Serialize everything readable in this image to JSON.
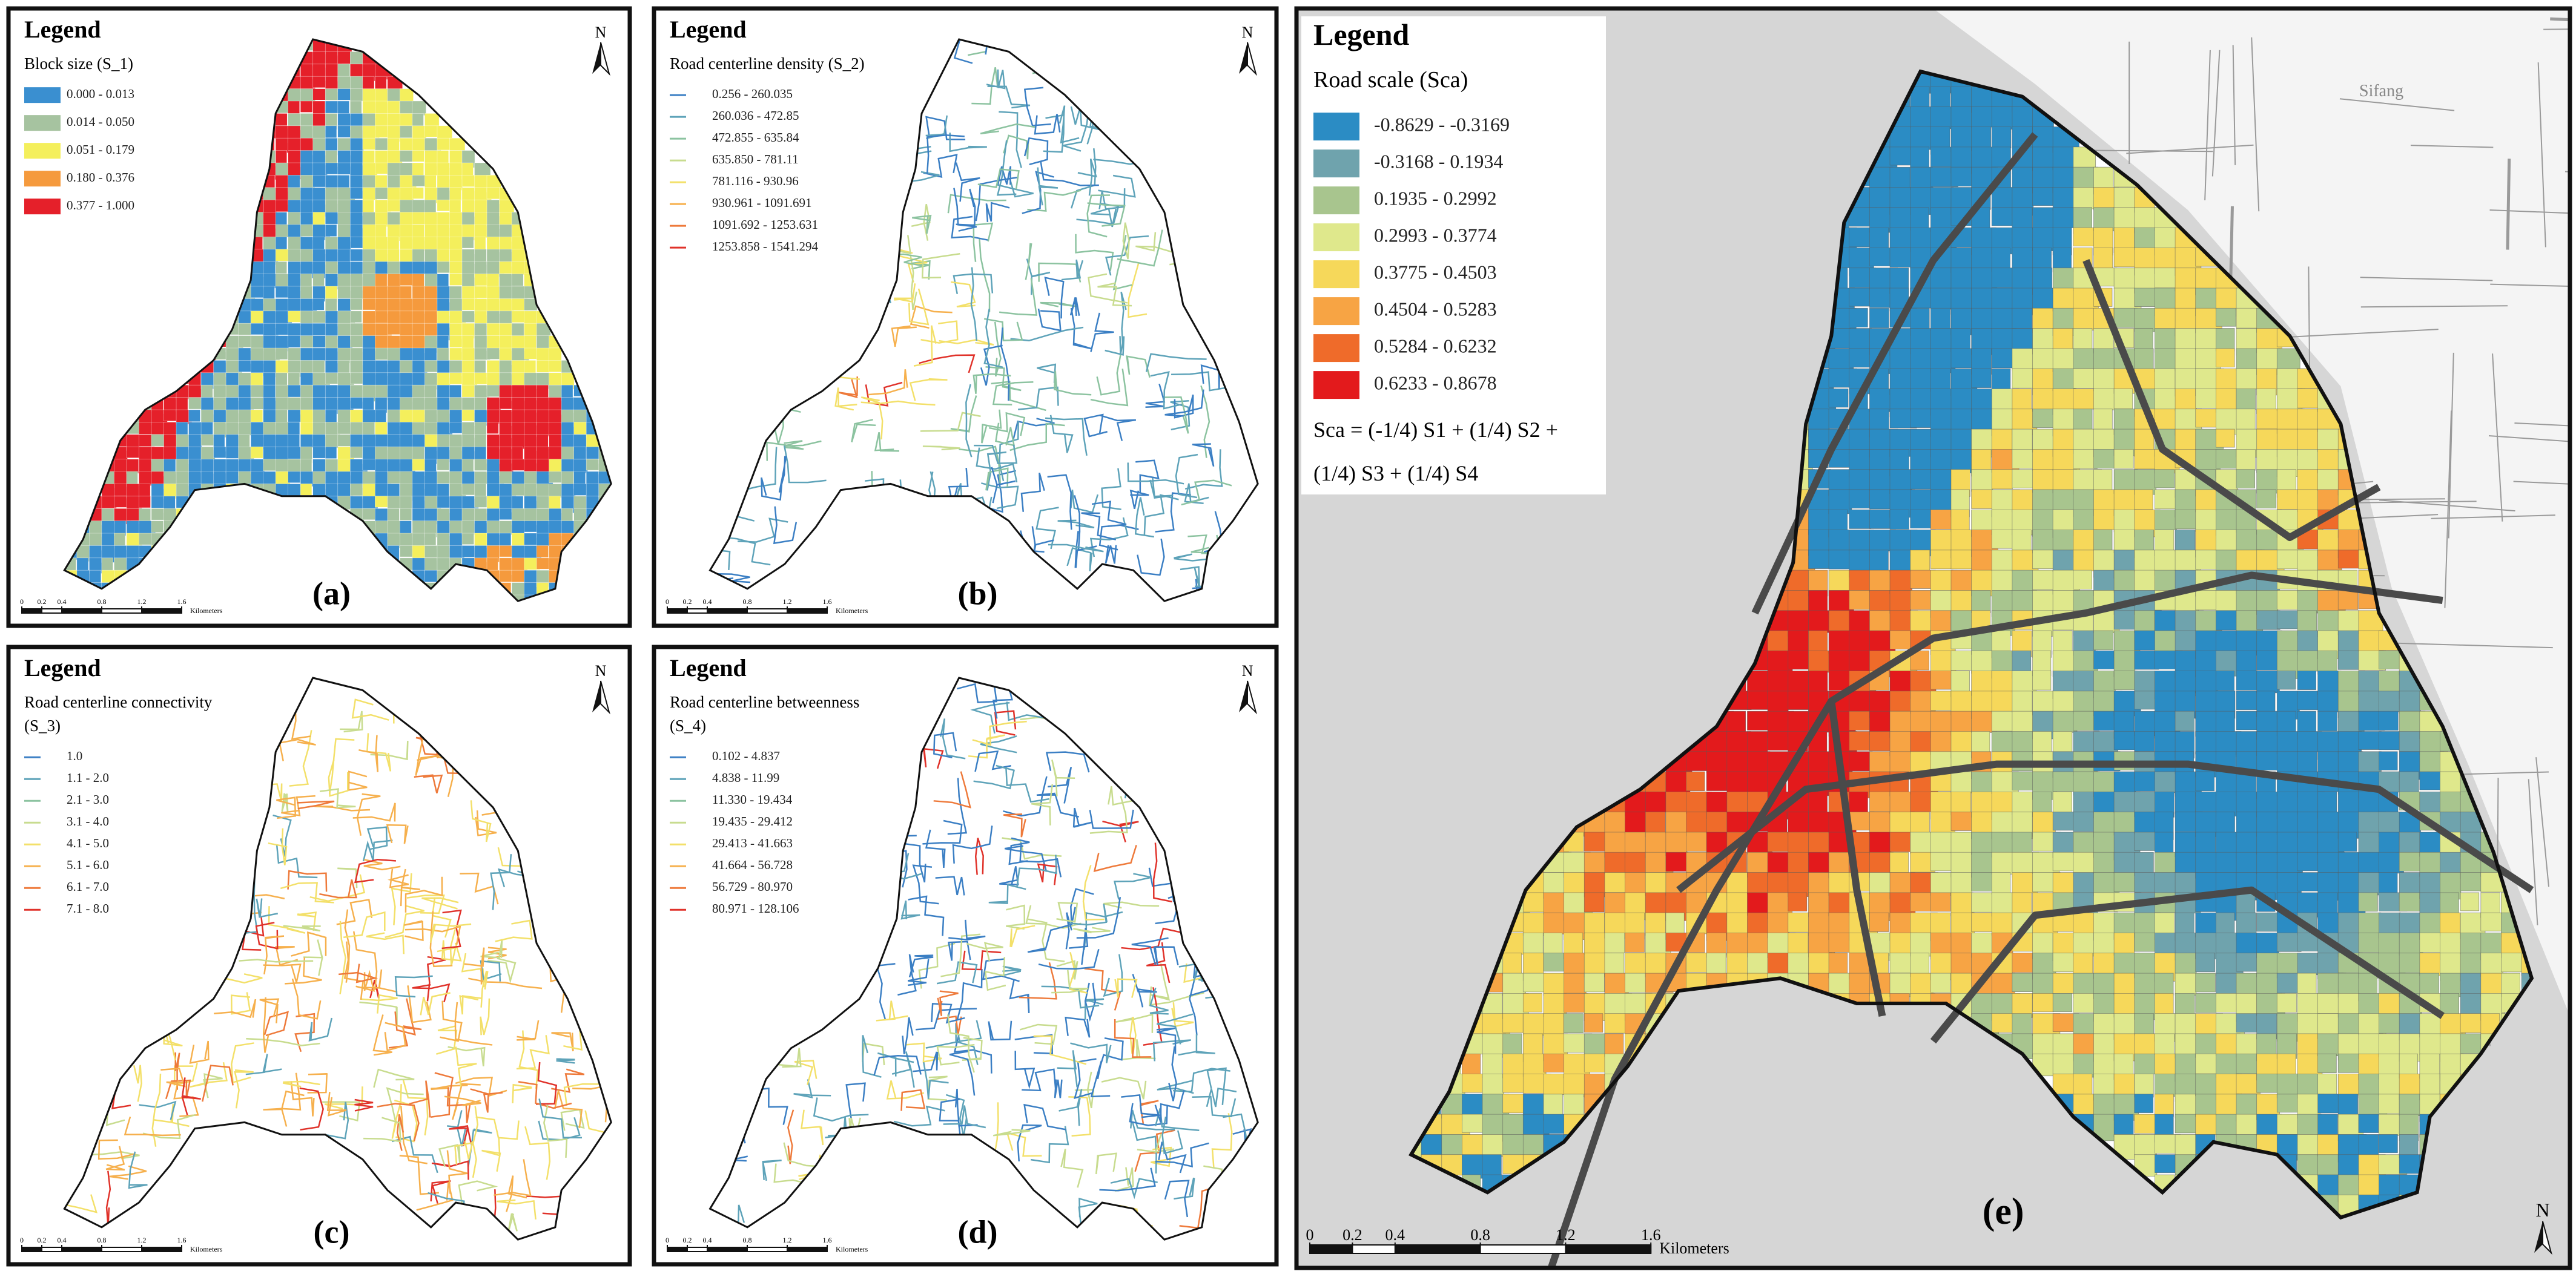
{
  "panels": [
    {
      "label": "(a)",
      "legend_title": "Legend",
      "subtitle": [
        "Block size (S_1)"
      ],
      "symbol": "patch",
      "classes": [
        {
          "label": "0.000  -  0.013",
          "color": "#3a8fd0"
        },
        {
          "label": "0.014  -  0.050",
          "color": "#a6c3a0"
        },
        {
          "label": "0.051  -  0.179",
          "color": "#f4ef5c"
        },
        {
          "label": "0.180  -  0.376",
          "color": "#f59a3d"
        },
        {
          "label": "0.377  -  1.000",
          "color": "#e5202a"
        }
      ]
    },
    {
      "label": "(b)",
      "legend_title": "Legend",
      "subtitle": [
        "Road centerline density (S_2)"
      ],
      "symbol": "line",
      "classes": [
        {
          "label": "0.256  -  260.035",
          "color": "#3b7fc4"
        },
        {
          "label": "260.036  -  472.85",
          "color": "#5ea3b9"
        },
        {
          "label": "472.855  -  635.84",
          "color": "#8cc3a0"
        },
        {
          "label": "635.850  -  781.11",
          "color": "#c8dc8f"
        },
        {
          "label": "781.116  -  930.96",
          "color": "#f3e06a"
        },
        {
          "label": "930.961  -  1091.691",
          "color": "#f6b04d"
        },
        {
          "label": "1091.692  -  1253.631",
          "color": "#ee7a3b"
        },
        {
          "label": "1253.858  -  1541.294",
          "color": "#e0322a"
        }
      ]
    },
    {
      "label": "(c)",
      "legend_title": "Legend",
      "subtitle": [
        "Road centerline connectivity",
        "(S_3)"
      ],
      "symbol": "line",
      "classes": [
        {
          "label": "1.0",
          "color": "#3b7fc4"
        },
        {
          "label": "1.1  -  2.0",
          "color": "#5ea3b9"
        },
        {
          "label": "2.1  -  3.0",
          "color": "#8cc3a0"
        },
        {
          "label": "3.1  -  4.0",
          "color": "#c8dc8f"
        },
        {
          "label": "4.1  -  5.0",
          "color": "#f3e06a"
        },
        {
          "label": "5.1  -  6.0",
          "color": "#f6b04d"
        },
        {
          "label": "6.1  -  7.0",
          "color": "#ee7a3b"
        },
        {
          "label": "7.1  -  8.0",
          "color": "#e0322a"
        }
      ]
    },
    {
      "label": "(d)",
      "legend_title": "Legend",
      "subtitle": [
        "Road centerline betweenness",
        "(S_4)"
      ],
      "symbol": "line",
      "classes": [
        {
          "label": "0.102  -  4.837",
          "color": "#3b7fc4"
        },
        {
          "label": "4.838  -  11.99",
          "color": "#5ea3b9"
        },
        {
          "label": "11.330  -  19.434",
          "color": "#8cc3a0"
        },
        {
          "label": "19.435  -  29.412",
          "color": "#c8dc8f"
        },
        {
          "label": "29.413  -  41.663",
          "color": "#f3e06a"
        },
        {
          "label": "41.664  -  56.728",
          "color": "#f6b04d"
        },
        {
          "label": "56.729  -  80.970",
          "color": "#ee7a3b"
        },
        {
          "label": "80.971  -  128.106",
          "color": "#e0322a"
        }
      ]
    },
    {
      "label": "(e)",
      "legend_title": "Legend",
      "subtitle": [
        "Road scale (Sca)"
      ],
      "symbol": "patch",
      "classes": [
        {
          "label": "-0.8629   -   -0.3169",
          "color": "#2b8cc4"
        },
        {
          "label": "-0.3168   -   0.1934",
          "color": "#6fa3ad"
        },
        {
          "label": "0.1935   -   0.2992",
          "color": "#a8c58e"
        },
        {
          "label": "0.2993   -   0.3774",
          "color": "#dfe88c"
        },
        {
          "label": "0.3775   -   0.4503",
          "color": "#f6d85a"
        },
        {
          "label": "0.4504   -   0.5283",
          "color": "#f7a444"
        },
        {
          "label": "0.5284   -   0.6232",
          "color": "#ef6b2a"
        },
        {
          "label": "0.6233   -   0.8678",
          "color": "#e31a1c"
        }
      ],
      "formula": [
        "Sca = (-1/4) S1 + (1/4) S2 +",
        "(1/4) S3 + (1/4) S4"
      ],
      "place_names": [
        "Sifang"
      ]
    }
  ],
  "scale_bar": {
    "ticks": [
      0,
      0.2,
      0.4,
      0.8,
      1.2,
      1.6
    ],
    "unit": "Kilometers"
  },
  "north": "N"
}
